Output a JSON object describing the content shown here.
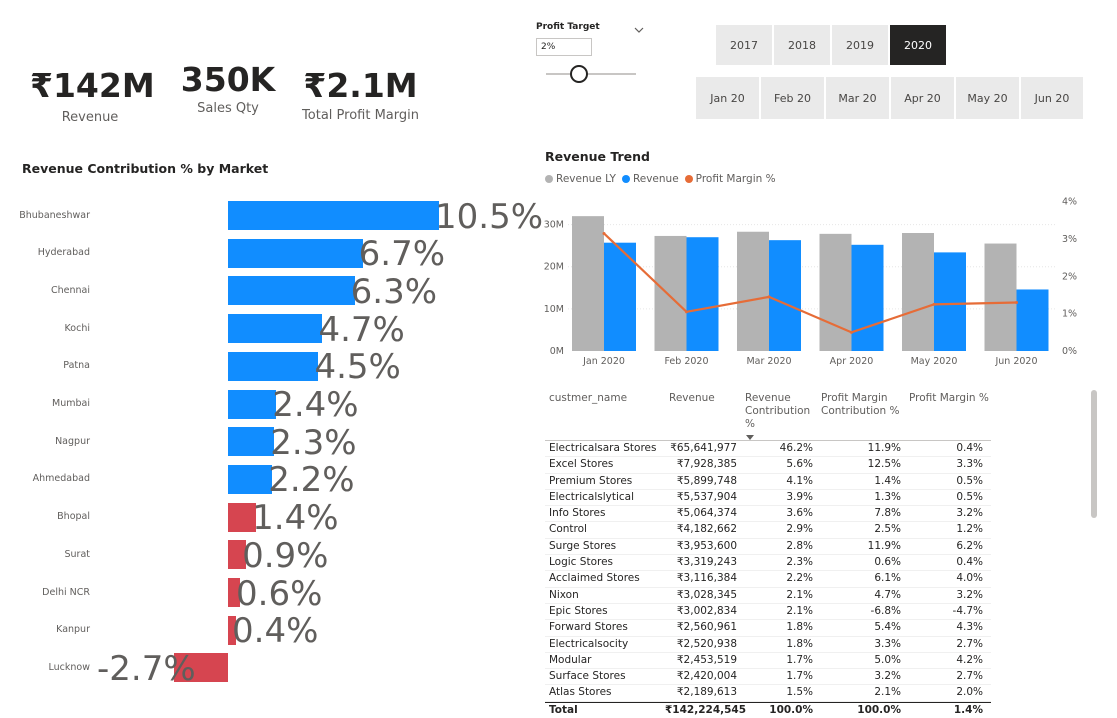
{
  "kpis": [
    {
      "value": "₹142M",
      "label": "Revenue"
    },
    {
      "value": "350K",
      "label": "Sales Qty"
    },
    {
      "value": "₹2.1M",
      "label": "Total Profit Margin"
    }
  ],
  "profit_target": {
    "label": "Profit Target",
    "value": "2%",
    "dropdown_icon": "chevron-down-icon"
  },
  "years": [
    "2017",
    "2018",
    "2019",
    "2020"
  ],
  "selected_year": "2020",
  "months": [
    "Jan 20",
    "Feb 20",
    "Mar 20",
    "Apr 20",
    "May 20",
    "Jun 20"
  ],
  "colors": {
    "positive_bar": "#118DFF",
    "negative_bar": "#D64550",
    "revenue_ly": "#B3B3B3",
    "revenue": "#118DFF",
    "profit_margin": "#E66C37",
    "selected_tile": "#252423",
    "tile": "#EAEAEA"
  },
  "market_chart": {
    "title": "Revenue Contribution % by Market",
    "chart_data": {
      "type": "bar",
      "orientation": "horizontal",
      "categories": [
        "Bhubaneshwar",
        "Hyderabad",
        "Chennai",
        "Kochi",
        "Patna",
        "Mumbai",
        "Nagpur",
        "Ahmedabad",
        "Bhopal",
        "Surat",
        "Delhi NCR",
        "Kanpur",
        "Lucknow"
      ],
      "values": [
        10.5,
        6.7,
        6.3,
        4.7,
        4.5,
        2.4,
        2.3,
        2.2,
        1.4,
        0.9,
        0.6,
        0.4,
        -2.7
      ],
      "labels": [
        "10.5%",
        "6.7%",
        "6.3%",
        "4.7%",
        "4.5%",
        "2.4%",
        "2.3%",
        "2.2%",
        "1.4%",
        "0.9%",
        "0.6%",
        "0.4%",
        "-2.7%"
      ]
    }
  },
  "trend_chart": {
    "title": "Revenue Trend",
    "legend": [
      "Revenue LY",
      "Revenue",
      "Profit Margin %"
    ],
    "chart_data": {
      "type": "bar",
      "combo_line": true,
      "categories": [
        "Jan 2020",
        "Feb 2020",
        "Mar 2020",
        "Apr 2020",
        "May 2020",
        "Jun 2020"
      ],
      "series": [
        {
          "name": "Revenue LY",
          "type": "bar",
          "axis": "left",
          "values": [
            32.0,
            27.3,
            28.3,
            27.8,
            28.0,
            25.5
          ]
        },
        {
          "name": "Revenue",
          "type": "bar",
          "axis": "left",
          "values": [
            25.7,
            27.0,
            26.3,
            25.2,
            23.4,
            14.6
          ]
        },
        {
          "name": "Profit Margin %",
          "type": "line",
          "axis": "right",
          "values": [
            3.15,
            1.05,
            1.45,
            0.5,
            1.25,
            1.3
          ]
        }
      ],
      "y_left_ticks": [
        "0M",
        "10M",
        "20M",
        "30M"
      ],
      "y_left_range": [
        0,
        35
      ],
      "y_right_ticks": [
        "0%",
        "1%",
        "2%",
        "3%",
        "4%"
      ],
      "y_right_range": [
        0,
        4.1
      ]
    }
  },
  "table": {
    "columns": [
      "custmer_name",
      "Revenue",
      "Revenue Contribution %",
      "Profit Margin Contribution %",
      "Profit Margin %"
    ],
    "sort_icon": "sort-descending-icon",
    "rows": [
      [
        "Electricalsara Stores",
        "₹65,641,977",
        "46.2%",
        "11.9%",
        "0.4%"
      ],
      [
        "Excel Stores",
        "₹7,928,385",
        "5.6%",
        "12.5%",
        "3.3%"
      ],
      [
        "Premium Stores",
        "₹5,899,748",
        "4.1%",
        "1.4%",
        "0.5%"
      ],
      [
        "Electricalslytical",
        "₹5,537,904",
        "3.9%",
        "1.3%",
        "0.5%"
      ],
      [
        "Info Stores",
        "₹5,064,374",
        "3.6%",
        "7.8%",
        "3.2%"
      ],
      [
        "Control",
        "₹4,182,662",
        "2.9%",
        "2.5%",
        "1.2%"
      ],
      [
        "Surge Stores",
        "₹3,953,600",
        "2.8%",
        "11.9%",
        "6.2%"
      ],
      [
        "Logic Stores",
        "₹3,319,243",
        "2.3%",
        "0.6%",
        "0.4%"
      ],
      [
        "Acclaimed Stores",
        "₹3,116,384",
        "2.2%",
        "6.1%",
        "4.0%"
      ],
      [
        "Nixon",
        "₹3,028,345",
        "2.1%",
        "4.7%",
        "3.2%"
      ],
      [
        "Epic Stores",
        "₹3,002,834",
        "2.1%",
        "-6.8%",
        "-4.7%"
      ],
      [
        "Forward Stores",
        "₹2,560,961",
        "1.8%",
        "5.4%",
        "4.3%"
      ],
      [
        "Electricalsocity",
        "₹2,520,938",
        "1.8%",
        "3.3%",
        "2.7%"
      ],
      [
        "Modular",
        "₹2,453,519",
        "1.7%",
        "5.0%",
        "4.2%"
      ],
      [
        "Surface Stores",
        "₹2,420,004",
        "1.7%",
        "3.2%",
        "2.7%"
      ],
      [
        "Atlas Stores",
        "₹2,189,613",
        "1.5%",
        "2.1%",
        "2.0%"
      ]
    ],
    "total": [
      "Total",
      "₹142,224,545",
      "100.0%",
      "100.0%",
      "1.4%"
    ]
  }
}
